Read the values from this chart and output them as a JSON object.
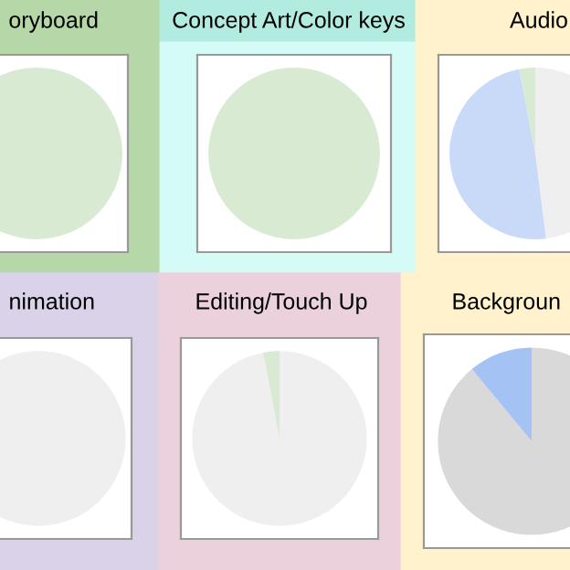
{
  "chart_data": [
    {
      "type": "pie",
      "title": "oryboard",
      "categories": [
        null
      ],
      "values": [
        100
      ],
      "colors": [
        "#d9ead3"
      ]
    },
    {
      "type": "pie",
      "title": "Concept Art/Color keys",
      "categories": [
        null
      ],
      "values": [
        100
      ],
      "colors": [
        "#d9ead3"
      ]
    },
    {
      "type": "pie",
      "title": "Audio",
      "categories": [
        null,
        null,
        null
      ],
      "values": [
        48,
        49,
        3
      ],
      "colors": [
        "#efefef",
        "#c9daf8",
        "#d9ead3"
      ]
    },
    {
      "type": "pie",
      "title": "nimation",
      "categories": [
        null
      ],
      "values": [
        100
      ],
      "colors": [
        "#efefef"
      ]
    },
    {
      "type": "pie",
      "title": "Editing/Touch Up",
      "categories": [
        null,
        null
      ],
      "values": [
        97,
        3
      ],
      "colors": [
        "#efefef",
        "#d9ead3"
      ]
    },
    {
      "type": "pie",
      "title": "Backgroun",
      "categories": [
        null,
        null
      ],
      "values": [
        89,
        11
      ],
      "colors": [
        "#d9d9d9",
        "#a4c2f4"
      ]
    }
  ]
}
